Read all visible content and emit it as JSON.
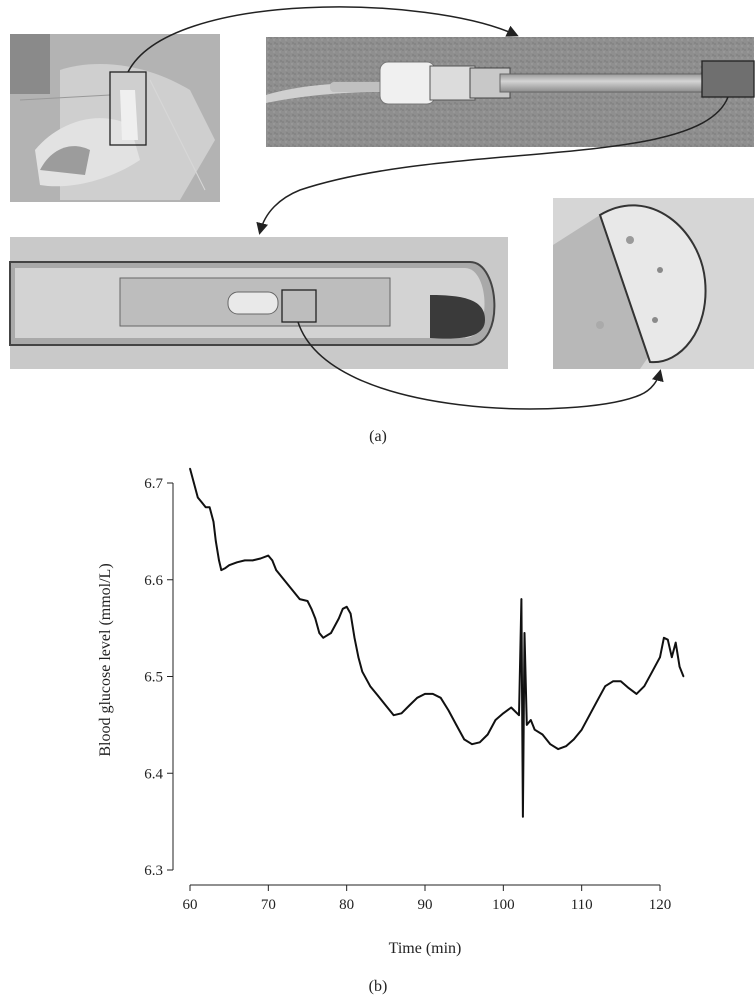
{
  "figure": {
    "panel_a_label": "(a)",
    "panel_b_label": "(b)"
  },
  "photos": [
    {
      "name": "patient-photo",
      "description_hidden": true
    },
    {
      "name": "catheter-connector-photo"
    },
    {
      "name": "sensor-tip-micrograph"
    },
    {
      "name": "fiber-end-micrograph"
    }
  ],
  "chart_data": {
    "type": "line",
    "xlabel": "Time (min)",
    "ylabel": "Blood glucose level (mmol/L)",
    "xlim": [
      60,
      123
    ],
    "ylim": [
      6.3,
      6.72
    ],
    "xticks": [
      "60",
      "70",
      "80",
      "90",
      "100",
      "110",
      "120"
    ],
    "yticks": [
      "6.3",
      "6.4",
      "6.5",
      "6.6",
      "6.7"
    ],
    "series": [
      {
        "color": "#111111",
        "x": [
          60,
          60.5,
          61,
          61.5,
          62,
          62.5,
          63,
          63.3,
          63.7,
          64,
          64.5,
          65,
          66,
          67,
          68,
          69,
          70,
          70.5,
          71,
          72,
          73,
          74,
          75,
          75.5,
          76,
          76.5,
          77,
          78,
          79,
          79.5,
          80,
          80.5,
          81,
          81.5,
          82,
          83,
          84,
          85,
          86,
          87,
          88,
          89,
          90,
          91,
          92,
          93,
          94,
          95,
          96,
          97,
          98,
          99,
          100,
          101,
          102,
          102.3,
          102.5,
          102.7,
          103,
          103.5,
          104,
          105,
          106,
          107,
          108,
          109,
          110,
          111,
          112,
          113,
          114,
          115,
          116,
          117,
          118,
          119,
          120,
          120.5,
          121,
          121.5,
          122,
          122.5,
          123
        ],
        "y": [
          6.715,
          6.7,
          6.685,
          6.68,
          6.675,
          6.675,
          6.66,
          6.64,
          6.62,
          6.61,
          6.612,
          6.615,
          6.618,
          6.62,
          6.62,
          6.622,
          6.625,
          6.62,
          6.61,
          6.6,
          6.59,
          6.58,
          6.578,
          6.57,
          6.56,
          6.545,
          6.54,
          6.545,
          6.56,
          6.57,
          6.572,
          6.565,
          6.54,
          6.52,
          6.505,
          6.49,
          6.48,
          6.47,
          6.46,
          6.462,
          6.47,
          6.478,
          6.482,
          6.482,
          6.478,
          6.465,
          6.45,
          6.435,
          6.43,
          6.432,
          6.44,
          6.455,
          6.462,
          6.468,
          6.46,
          6.58,
          6.355,
          6.545,
          6.45,
          6.455,
          6.445,
          6.44,
          6.43,
          6.425,
          6.428,
          6.435,
          6.445,
          6.46,
          6.475,
          6.49,
          6.495,
          6.495,
          6.488,
          6.482,
          6.49,
          6.505,
          6.52,
          6.54,
          6.538,
          6.52,
          6.535,
          6.51,
          6.5
        ]
      }
    ]
  }
}
